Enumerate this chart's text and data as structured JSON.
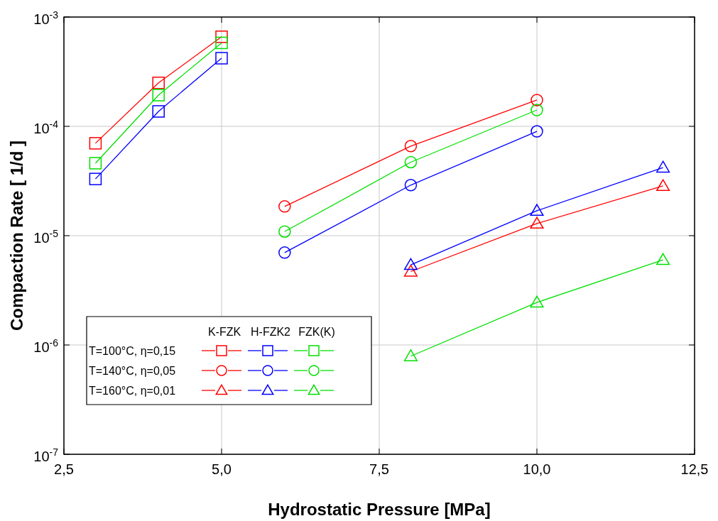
{
  "chart_data": {
    "type": "line",
    "xlabel": "Hydrostatic Pressure   [MPa]",
    "ylabel": "Compaction Rate   [ 1/d ]",
    "log": "y",
    "grid": true,
    "xlim": [
      2.5,
      12.5
    ],
    "ylim": [
      1e-07,
      0.001
    ],
    "xticks": [
      {
        "value": 2.5,
        "label": "2,5"
      },
      {
        "value": 5,
        "label": "5,0"
      },
      {
        "value": 7.5,
        "label": "7,5"
      },
      {
        "value": 10,
        "label": "10,0"
      },
      {
        "value": 12.5,
        "label": "12,5"
      }
    ],
    "yticks": [
      {
        "value": 1e-07,
        "label": "10$^{-7}$"
      },
      {
        "value": 1e-06,
        "label": "10$^{-6}$"
      },
      {
        "value": 1e-05,
        "label": "10$^{-5}$"
      },
      {
        "value": 0.0001,
        "label": "10$^{-4}$"
      },
      {
        "value": 0.001,
        "label": "10$^{-3}$"
      }
    ],
    "annotations": [
      "K-FZK",
      "H-FZK2",
      "FZK(K)",
      "T=100°C, η=0,15",
      "T=140°C, η=0,05",
      "T=160°C, η=0,01"
    ],
    "series": [
      {
        "color": "#ff0000",
        "marker": "square",
        "x": [
          3,
          4,
          5
        ],
        "values": [
          7e-05,
          0.00025,
          0.00066
        ]
      },
      {
        "color": "#0000ff",
        "marker": "square",
        "x": [
          3,
          4,
          5
        ],
        "values": [
          3.3e-05,
          0.000137,
          0.00042
        ]
      },
      {
        "color": "#00e000",
        "marker": "square",
        "x": [
          3,
          4,
          5
        ],
        "values": [
          4.6e-05,
          0.000193,
          0.00058
        ]
      },
      {
        "color": "#ff0000",
        "marker": "circle",
        "x": [
          6,
          8,
          10
        ],
        "values": [
          1.85e-05,
          6.6e-05,
          0.000174
        ]
      },
      {
        "color": "#0000ff",
        "marker": "circle",
        "x": [
          6,
          8,
          10
        ],
        "values": [
          7e-06,
          2.9e-05,
          9e-05
        ]
      },
      {
        "color": "#00e000",
        "marker": "circle",
        "x": [
          6,
          8,
          10
        ],
        "values": [
          1.09e-05,
          4.7e-05,
          0.000141
        ]
      },
      {
        "color": "#ff0000",
        "marker": "triangle",
        "x": [
          8,
          10,
          12
        ],
        "values": [
          4.7e-06,
          1.29e-05,
          2.85e-05
        ]
      },
      {
        "color": "#0000ff",
        "marker": "triangle",
        "x": [
          8,
          10,
          12
        ],
        "values": [
          5.4e-06,
          1.69e-05,
          4.2e-05
        ]
      },
      {
        "color": "#00e000",
        "marker": "triangle",
        "x": [
          8,
          10,
          12
        ],
        "values": [
          7.9e-07,
          2.45e-06,
          6e-06
        ]
      }
    ]
  }
}
